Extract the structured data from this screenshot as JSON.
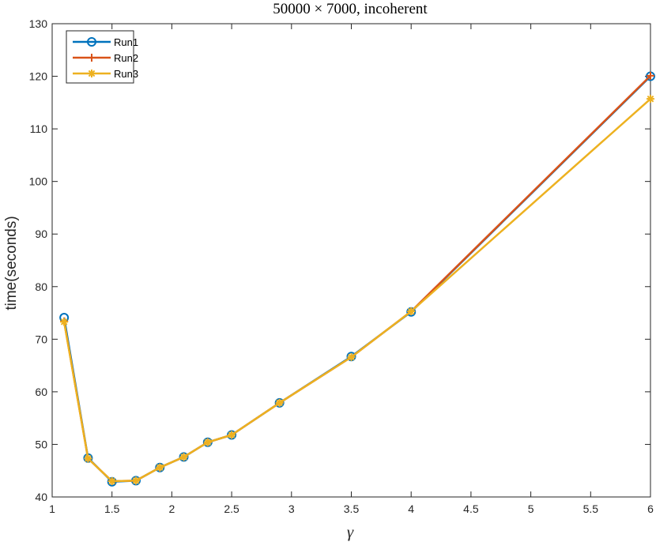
{
  "chart_data": {
    "type": "line",
    "title": "50000 × 7000, incoherent",
    "xlabel": "γ",
    "ylabel": "time(seconds)",
    "xlim": [
      1,
      6
    ],
    "ylim": [
      40,
      130
    ],
    "xticks": [
      1,
      1.5,
      2,
      2.5,
      3,
      3.5,
      4,
      4.5,
      5,
      5.5,
      6
    ],
    "xtick_labels": [
      "1",
      "1.5",
      "2",
      "2.5",
      "3",
      "3.5",
      "4",
      "4.5",
      "5",
      "5.5",
      "6"
    ],
    "yticks": [
      40,
      50,
      60,
      70,
      80,
      90,
      100,
      110,
      120,
      130
    ],
    "ytick_labels": [
      "40",
      "50",
      "60",
      "70",
      "80",
      "90",
      "100",
      "110",
      "120",
      "130"
    ],
    "grid": false,
    "legend_position": "top-left",
    "x": [
      1.1,
      1.3,
      1.5,
      1.7,
      1.9,
      2.1,
      2.3,
      2.5,
      2.9,
      3.5,
      4,
      6
    ],
    "series": [
      {
        "name": "Run1",
        "color": "#0072BD",
        "marker": "circle",
        "values": [
          74.1,
          47.4,
          42.9,
          43.1,
          45.6,
          47.6,
          50.4,
          51.8,
          57.9,
          66.7,
          75.2,
          120.0
        ]
      },
      {
        "name": "Run2",
        "color": "#D95319",
        "marker": "plus",
        "values": [
          73.4,
          47.3,
          43.0,
          43.1,
          45.6,
          47.6,
          50.4,
          51.8,
          57.9,
          66.6,
          75.3,
          120.1
        ]
      },
      {
        "name": "Run3",
        "color": "#EDB120",
        "marker": "asterisk",
        "values": [
          73.3,
          47.3,
          43.0,
          43.1,
          45.6,
          47.6,
          50.4,
          51.8,
          57.9,
          66.6,
          75.3,
          115.7
        ]
      }
    ]
  }
}
